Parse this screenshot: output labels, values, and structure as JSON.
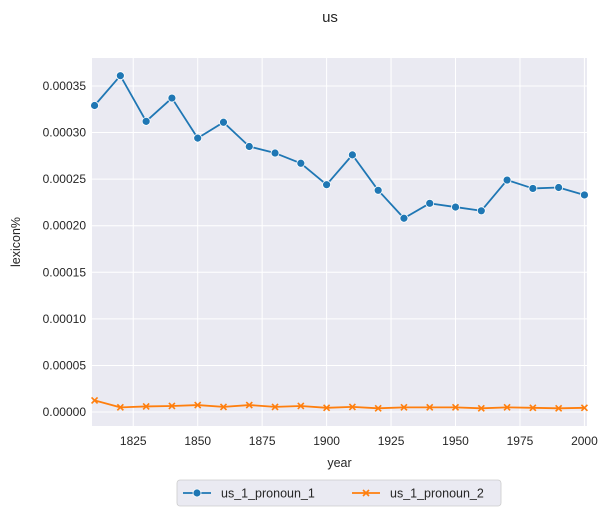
{
  "chart_data": {
    "type": "line",
    "title": "us",
    "xlabel": "year",
    "ylabel": "lexicon%",
    "xlim": [
      1809,
      2001
    ],
    "ylim": [
      -1.5e-05,
      0.00038
    ],
    "xticks": [
      1825,
      1850,
      1875,
      1900,
      1925,
      1950,
      1975,
      2000
    ],
    "xtick_labels": [
      "1825",
      "1850",
      "1875",
      "1900",
      "1925",
      "1950",
      "1975",
      "2000"
    ],
    "yticks": [
      0,
      5e-05,
      0.0001,
      0.00015,
      0.0002,
      0.00025,
      0.0003,
      0.00035
    ],
    "ytick_labels": [
      "0.00000",
      "0.00005",
      "0.00010",
      "0.00015",
      "0.00020",
      "0.00025",
      "0.00030",
      "0.00035"
    ],
    "grid": true,
    "legend_position": "bottom-center",
    "x": [
      1810,
      1820,
      1830,
      1840,
      1850,
      1860,
      1870,
      1880,
      1890,
      1900,
      1910,
      1920,
      1930,
      1940,
      1950,
      1960,
      1970,
      1980,
      1990,
      2000
    ],
    "series": [
      {
        "name": "us_1_pronoun_1",
        "color": "#1f77b4",
        "marker": "circle",
        "values": [
          0.000329,
          0.000361,
          0.000312,
          0.000337,
          0.000294,
          0.000311,
          0.000285,
          0.000278,
          0.000267,
          0.000244,
          0.000276,
          0.000238,
          0.000208,
          0.000224,
          0.00022,
          0.000216,
          0.000249,
          0.00024,
          0.000241,
          0.000233
        ]
      },
      {
        "name": "us_1_pronoun_2",
        "color": "#ff7f0e",
        "marker": "x",
        "values": [
          1.25e-05,
          5e-06,
          6e-06,
          6.5e-06,
          7.5e-06,
          5.5e-06,
          7.5e-06,
          5.5e-06,
          6.5e-06,
          4.5e-06,
          5.5e-06,
          4e-06,
          5e-06,
          5e-06,
          5e-06,
          4e-06,
          5e-06,
          4.5e-06,
          4e-06,
          4.5e-06
        ]
      }
    ]
  }
}
